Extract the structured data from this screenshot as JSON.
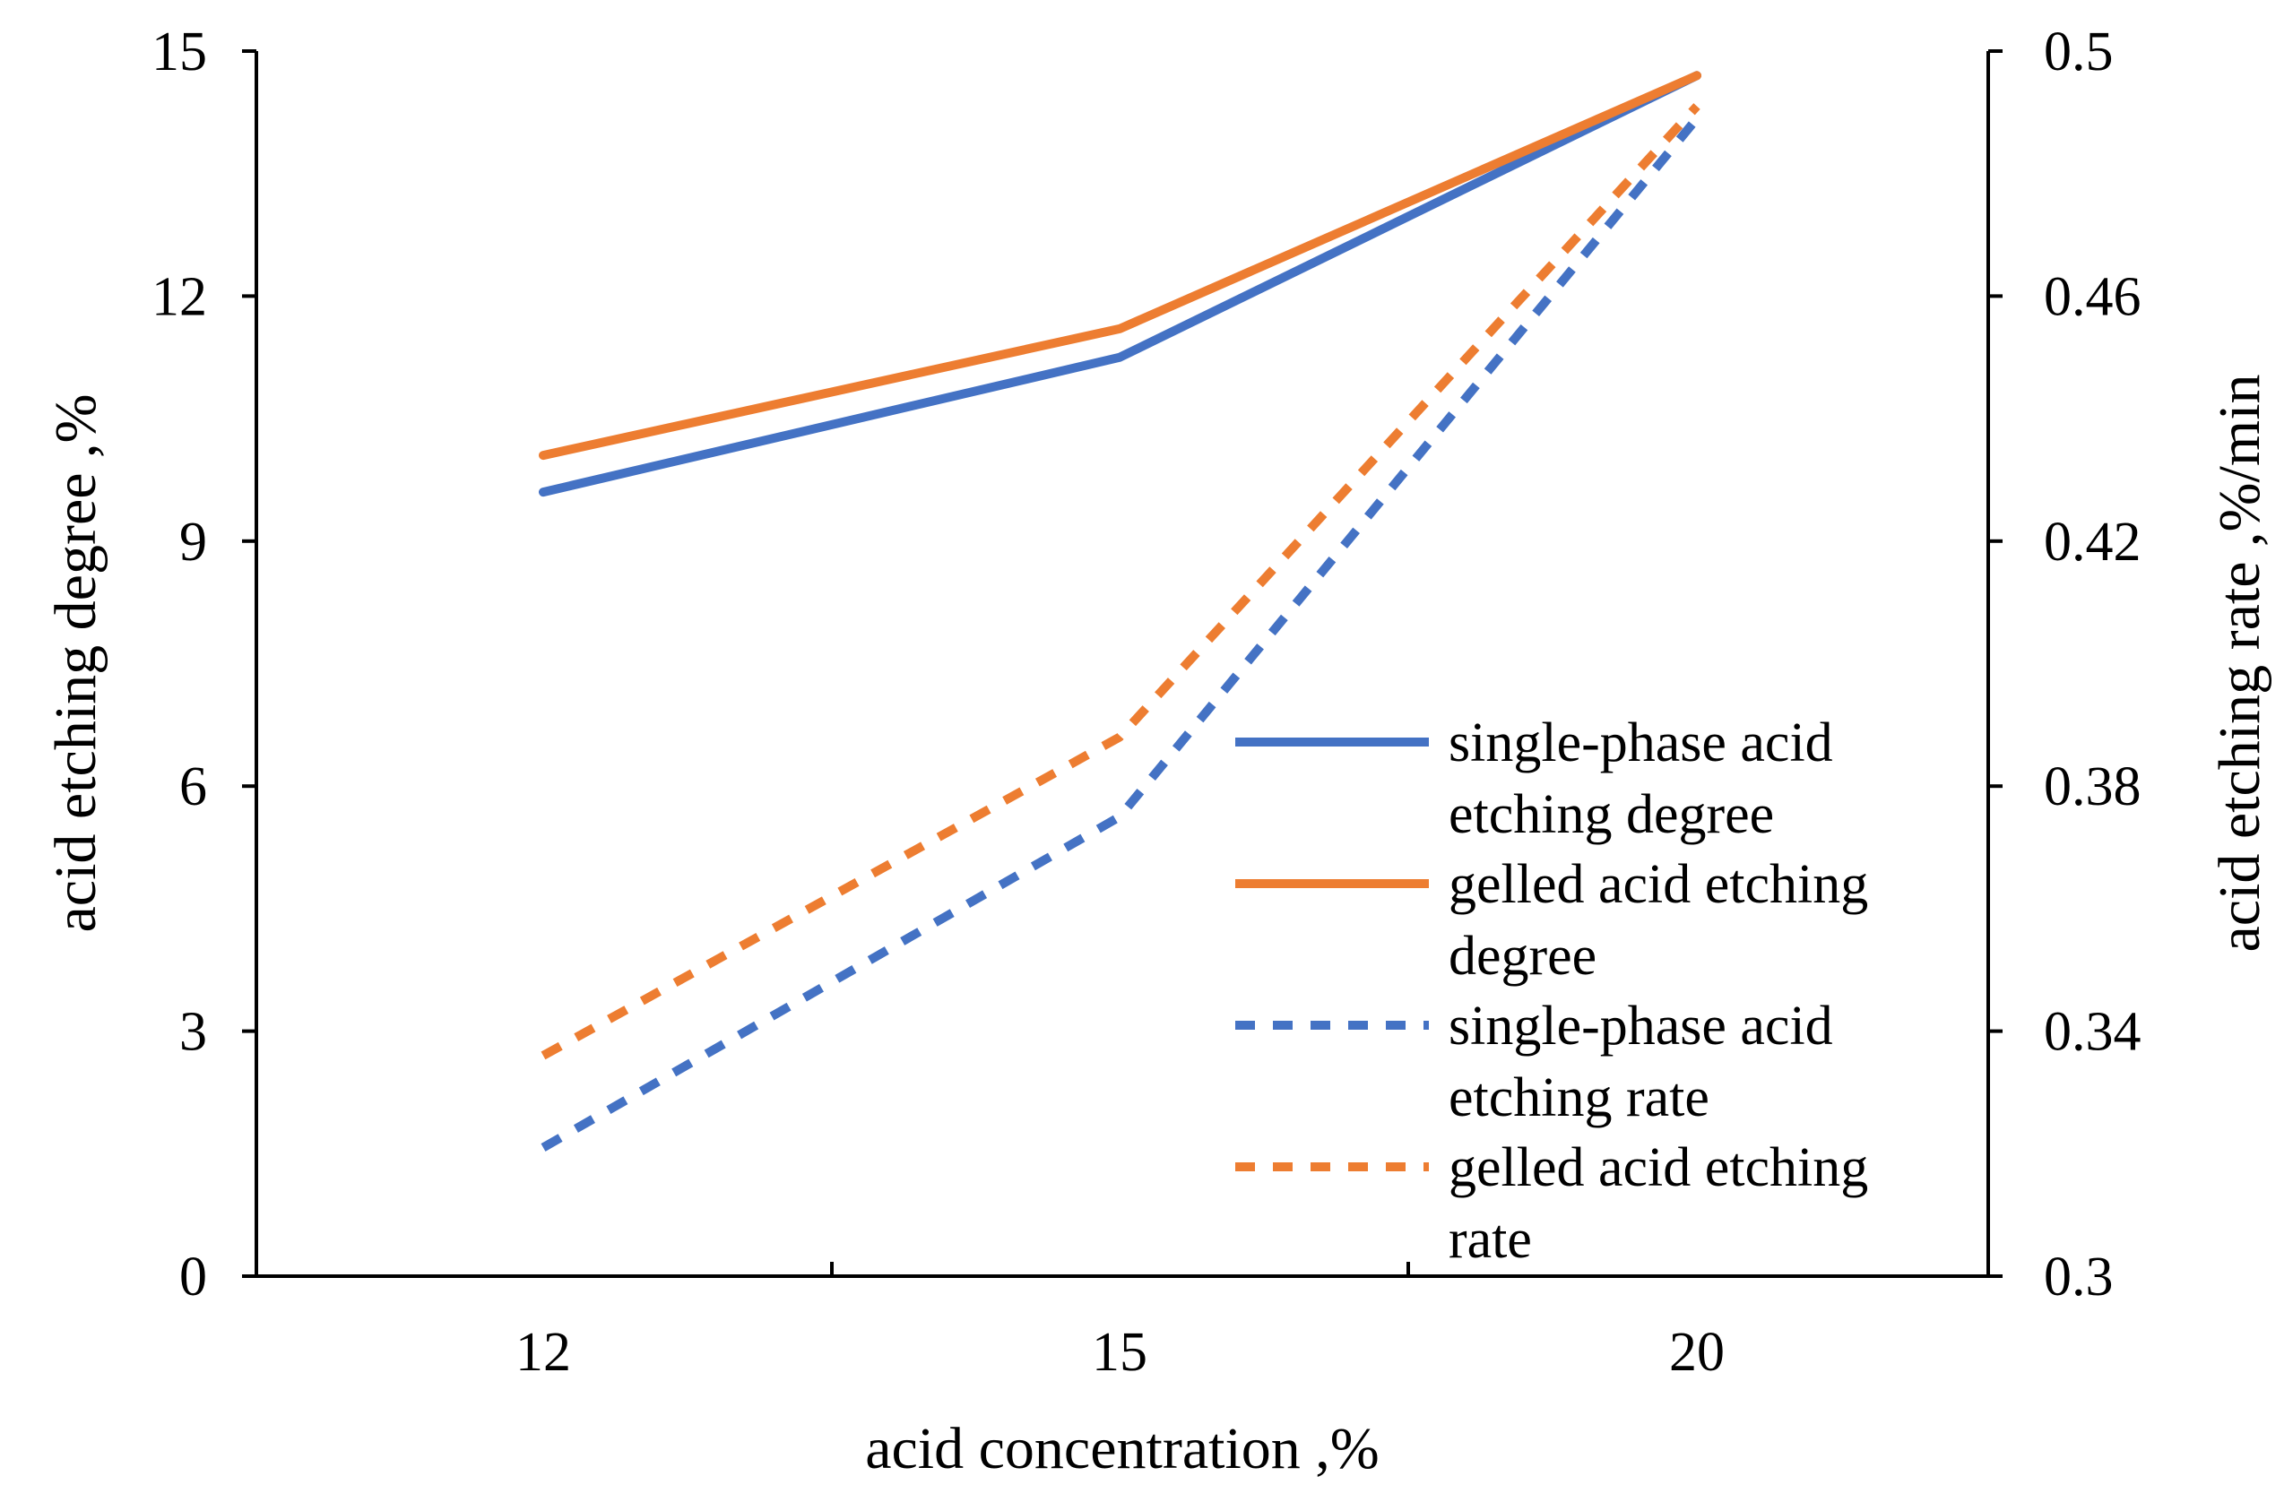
{
  "chart_data": {
    "type": "line",
    "title": "",
    "categories": [
      "12",
      "15",
      "20"
    ],
    "xlabel": "acid concentration ,%",
    "ylabel_left": "acid etching degree ,%",
    "ylabel_right": "acid etching rate ,%/min",
    "ylim_left": [
      0,
      15
    ],
    "ylim_right": [
      0.3,
      0.5
    ],
    "yticks_left": [
      "0",
      "3",
      "6",
      "9",
      "12",
      "15"
    ],
    "yticks_right": [
      "0.3",
      "0.34",
      "0.38",
      "0.42",
      "0.46",
      "0.5"
    ],
    "grid": false,
    "legend_position": "bottom-right",
    "series": [
      {
        "name_lines": [
          "single-phase acid",
          "etching degree"
        ],
        "axis": "left",
        "style": "solid",
        "color": "#4472C4",
        "values": [
          9.6,
          11.25,
          14.7
        ]
      },
      {
        "name_lines": [
          "gelled acid etching",
          "degree"
        ],
        "axis": "left",
        "style": "solid",
        "color": "#ED7D31",
        "values": [
          10.05,
          11.6,
          14.7
        ]
      },
      {
        "name_lines": [
          "single-phase acid",
          "etching rate"
        ],
        "axis": "right",
        "style": "dashed",
        "color": "#4472C4",
        "values": [
          0.321,
          0.375,
          0.489
        ]
      },
      {
        "name_lines": [
          "gelled acid etching",
          "rate"
        ],
        "axis": "right",
        "style": "dashed",
        "color": "#ED7D31",
        "values": [
          0.336,
          0.388,
          0.491
        ]
      }
    ]
  }
}
